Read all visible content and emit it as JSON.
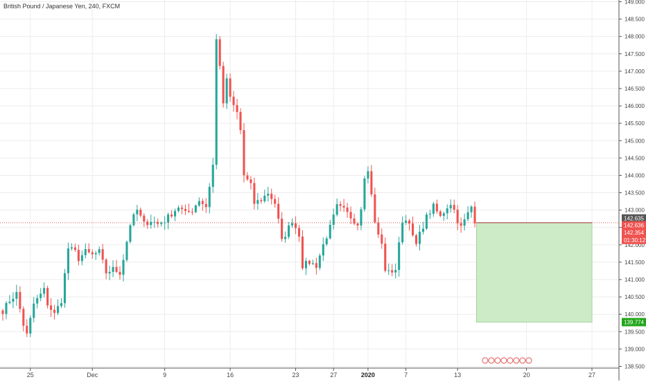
{
  "header": {
    "title": "British Pound / Japanese Yen, 240, FXCM"
  },
  "colors": {
    "up": "#26a69a",
    "down": "#ef5350",
    "grid": "#ececec",
    "axis_border": "#555555",
    "zone_fill": "#cdebc6",
    "zone_border": "#9fd39a",
    "entry_line": "#a35a5a",
    "current_price_line": "#e55353",
    "tag_current_bg": "#ef5350",
    "tag_entry_bg": "#555555",
    "tag_target_bg": "#22a51a"
  },
  "chart_data": {
    "type": "candlestick",
    "title": "British Pound / Japanese Yen, 240, FXCM",
    "ylim": [
      138.45,
      149.05
    ],
    "y_ticks": [
      "138.500",
      "139.000",
      "139.500",
      "140.000",
      "140.500",
      "141.000",
      "141.500",
      "142.000",
      "142.500",
      "143.000",
      "143.500",
      "144.000",
      "144.500",
      "145.000",
      "145.500",
      "146.000",
      "146.500",
      "147.000",
      "147.500",
      "148.000",
      "148.500",
      "149.000"
    ],
    "x_ticks": [
      {
        "label": "25",
        "bar": 8,
        "bold": false
      },
      {
        "label": "Dec",
        "bar": 26,
        "bold": false
      },
      {
        "label": "9",
        "bar": 47,
        "bold": false
      },
      {
        "label": "16",
        "bar": 66,
        "bold": false
      },
      {
        "label": "23",
        "bar": 85,
        "bold": false
      },
      {
        "label": "27",
        "bar": 96,
        "bold": false
      },
      {
        "label": "2020",
        "bar": 106,
        "bold": true
      },
      {
        "label": "7",
        "bar": 117,
        "bold": false
      },
      {
        "label": "13",
        "bar": 132,
        "bold": false
      },
      {
        "label": "20",
        "bar": 152,
        "bold": false
      },
      {
        "label": "27",
        "bar": 171,
        "bold": false
      }
    ],
    "close_path": [
      [
        0,
        140.1
      ],
      [
        2,
        140.4
      ],
      [
        4,
        140.6
      ],
      [
        6,
        139.7
      ],
      [
        7,
        139.4
      ],
      [
        9,
        140.3
      ],
      [
        12,
        140.7
      ],
      [
        13,
        140.3
      ],
      [
        15,
        140.0
      ],
      [
        17,
        140.4
      ],
      [
        19,
        141.9
      ],
      [
        21,
        141.8
      ],
      [
        22,
        141.6
      ],
      [
        24,
        141.8
      ],
      [
        26,
        141.7
      ],
      [
        28,
        141.8
      ],
      [
        30,
        141.2
      ],
      [
        32,
        141.3
      ],
      [
        34,
        141.2
      ],
      [
        35,
        141.6
      ],
      [
        37,
        142.6
      ],
      [
        39,
        143.0
      ],
      [
        41,
        142.6
      ],
      [
        43,
        142.7
      ],
      [
        45,
        142.6
      ],
      [
        47,
        142.7
      ],
      [
        49,
        142.9
      ],
      [
        51,
        143.1
      ],
      [
        53,
        142.9
      ],
      [
        55,
        143.0
      ],
      [
        57,
        143.3
      ],
      [
        59,
        143.1
      ],
      [
        61,
        144.3
      ],
      [
        62,
        147.9
      ],
      [
        63,
        147.2
      ],
      [
        64,
        146.0
      ],
      [
        65,
        146.8
      ],
      [
        66,
        146.2
      ],
      [
        67,
        146.0
      ],
      [
        68,
        145.8
      ],
      [
        69,
        145.3
      ],
      [
        70,
        144.0
      ],
      [
        72,
        143.7
      ],
      [
        73,
        143.2
      ],
      [
        75,
        143.3
      ],
      [
        77,
        143.5
      ],
      [
        79,
        143.2
      ],
      [
        80,
        142.7
      ],
      [
        81,
        142.1
      ],
      [
        83,
        142.5
      ],
      [
        84,
        142.7
      ],
      [
        86,
        142.3
      ],
      [
        87,
        141.4
      ],
      [
        89,
        141.5
      ],
      [
        91,
        141.4
      ],
      [
        93,
        142.0
      ],
      [
        95,
        142.5
      ],
      [
        97,
        143.1
      ],
      [
        99,
        143.0
      ],
      [
        101,
        142.8
      ],
      [
        103,
        142.6
      ],
      [
        104,
        143.1
      ],
      [
        105,
        144.0
      ],
      [
        106,
        144.1
      ],
      [
        107,
        143.5
      ],
      [
        108,
        142.6
      ],
      [
        110,
        142.0
      ],
      [
        111,
        141.3
      ],
      [
        112,
        141.2
      ],
      [
        114,
        141.3
      ],
      [
        115,
        142.0
      ],
      [
        116,
        142.7
      ],
      [
        118,
        142.7
      ],
      [
        119,
        142.2
      ],
      [
        120,
        142.0
      ],
      [
        121,
        142.3
      ],
      [
        123,
        142.8
      ],
      [
        125,
        143.1
      ],
      [
        127,
        142.8
      ],
      [
        129,
        143.1
      ],
      [
        130,
        143.2
      ],
      [
        131,
        143.0
      ],
      [
        132,
        142.7
      ],
      [
        133,
        142.5
      ],
      [
        134,
        142.7
      ],
      [
        136,
        143.1
      ],
      [
        137,
        142.7
      ]
    ],
    "last_bar": 137,
    "future_bars": 22,
    "position": {
      "entry": 142.636,
      "target": 139.774,
      "start_bar": 138,
      "end_bar": 171
    },
    "price_tags": [
      {
        "label": "142.635",
        "price": 142.76,
        "type": "entry"
      },
      {
        "label": "142.636",
        "price": 142.56,
        "type": "current"
      },
      {
        "label": "142.354",
        "price": 142.36,
        "type": "current"
      },
      {
        "label": "01:30:12",
        "price": 142.14,
        "type": "current"
      },
      {
        "label": "139.774",
        "price": 139.774,
        "type": "target"
      }
    ]
  }
}
